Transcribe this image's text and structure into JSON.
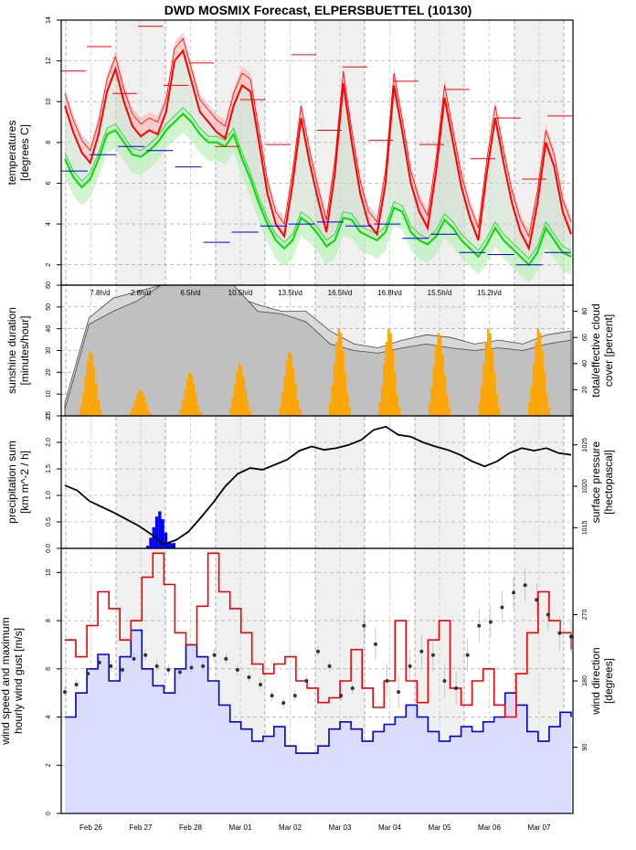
{
  "title": "DWD MOSMIX Forecast, ELPERSBUETTEL (10130)",
  "x_days": [
    "Feb 26",
    "Feb 27",
    "Feb 28",
    "Mar 01",
    "Mar 02",
    "Mar 03",
    "Mar 04",
    "Mar 05",
    "Mar 06",
    "Mar 07"
  ],
  "colors": {
    "tmax": "#ff0000",
    "tmin": "#00dd00",
    "tmaxband": "#ffb0b0",
    "tminband": "#b0f0b0",
    "bar_min": "#0000cc",
    "sun": "#ffa500",
    "cloud": "#c8c8c8",
    "precip": "#0000ff",
    "gust": "#ee0000",
    "wind": "#0000cc",
    "windfill": "#dcdcff",
    "night": "#f0f0f0"
  },
  "chart_data": [
    {
      "type": "line",
      "panel": "temperature",
      "ylabel": "temperatures\n[degrees C]",
      "ylim": [
        1,
        14
      ],
      "yticks": [
        2,
        4,
        6,
        8,
        10,
        12,
        14
      ],
      "series": [
        {
          "name": "temperature (2m)",
          "values": [
            9.8,
            8.5,
            7.5,
            7.0,
            8.4,
            10.5,
            11.6,
            10.0,
            8.8,
            8.3,
            8.6,
            8.4,
            9.5,
            12.0,
            12.5,
            11.0,
            9.5,
            9.0,
            8.5,
            8.2,
            9.8,
            10.8,
            10.5,
            8.0,
            5.5,
            4.0,
            3.4,
            6.0,
            9.2,
            7.0,
            5.2,
            3.6,
            6.5,
            10.9,
            8.0,
            5.5,
            4.0,
            3.5,
            6.0,
            10.8,
            8.5,
            6.0,
            4.6,
            3.8,
            6.6,
            10.2,
            8.0,
            5.8,
            4.3,
            3.2,
            6.5,
            9.2,
            7.0,
            5.0,
            3.6,
            2.8,
            5.0,
            8.0,
            6.8,
            4.6,
            3.5
          ]
        },
        {
          "name": "dewpoint/min",
          "values": [
            7.2,
            6.3,
            5.8,
            6.2,
            7.2,
            8.4,
            8.6,
            8.0,
            7.4,
            7.3,
            7.6,
            8.0,
            8.6,
            9.0,
            9.4,
            9.0,
            8.4,
            8.0,
            8.0,
            7.8,
            8.4,
            7.2,
            6.2,
            5.0,
            4.0,
            3.2,
            2.8,
            3.2,
            4.3,
            4.0,
            3.5,
            2.9,
            3.2,
            4.3,
            4.2,
            3.6,
            3.4,
            3.2,
            3.6,
            4.8,
            4.6,
            3.6,
            3.2,
            3.0,
            3.4,
            4.2,
            3.8,
            3.2,
            2.8,
            2.4,
            3.0,
            3.8,
            3.2,
            2.8,
            2.4,
            2.0,
            2.6,
            3.8,
            3.2,
            2.6,
            2.4
          ]
        }
      ],
      "daily_max_marks": [
        11.5,
        12.7,
        10.4,
        13.7,
        10.8,
        11.9,
        7.8,
        10.1,
        7.9,
        12.3,
        8.6,
        11.7,
        8.1,
        11.0,
        7.9,
        10.6,
        7.2,
        9.2,
        6.2,
        9.3
      ],
      "daily_min_marks": [
        6.6,
        7.4,
        7.8,
        7.6,
        6.8,
        3.1,
        3.6,
        3.9,
        4.0,
        4.1,
        3.9,
        4.0,
        3.3,
        3.5,
        2.6,
        2.5,
        2.0,
        2.6
      ]
    },
    {
      "type": "bar",
      "panel": "sunshine",
      "ylabel": "sunshine duration\n[minutes/hour]",
      "ylabel_right": "total/effective cloud\ncover [percent]",
      "ylim": [
        0,
        60
      ],
      "yticks": [
        0,
        10,
        20,
        30,
        40,
        50,
        60
      ],
      "yticks_right": [
        20,
        40,
        60,
        80
      ],
      "daily_sunshine_labels": [
        "7.8h/d",
        "2.8h/d",
        "6.5h/d",
        "10.5h/d",
        "13.5h/d",
        "16.5h/d",
        "16.8h/d",
        "15.5h/d",
        "15.2h/d"
      ],
      "daily_sun_peak_min": [
        30,
        12,
        20,
        24,
        30,
        40,
        40,
        38,
        40,
        40
      ],
      "cloud_total_pct": [
        10,
        75,
        90,
        95,
        100,
        100,
        98,
        92,
        85,
        80,
        80,
        65,
        55,
        52,
        58,
        62,
        60,
        55,
        58,
        55,
        62,
        65
      ],
      "cloud_effective_pct": [
        5,
        70,
        80,
        88,
        100,
        100,
        100,
        100,
        80,
        78,
        72,
        55,
        50,
        48,
        52,
        55,
        52,
        50,
        52,
        50,
        55,
        58
      ]
    },
    {
      "type": "line",
      "panel": "precipitation/pressure",
      "ylabel": "precipitation sum\n[km m^-2 / h]",
      "ylabel_right": "surface pressure\n[hectopascal]",
      "ylim": [
        0,
        2.5
      ],
      "yticks": [
        0.0,
        0.5,
        1.0,
        1.5,
        2.0,
        2.5
      ],
      "yticks_right": [
        1015,
        1020,
        1025
      ],
      "pressure_hpa": [
        1020.1,
        1019.5,
        1018.2,
        1017.5,
        1016.8,
        1016.0,
        1015.2,
        1014.2,
        1013.0,
        1013.5,
        1014.5,
        1016.2,
        1018.0,
        1020.0,
        1021.5,
        1022.2,
        1022.0,
        1022.6,
        1023.2,
        1024.3,
        1024.8,
        1024.4,
        1024.6,
        1025.0,
        1025.6,
        1026.8,
        1027.2,
        1026.2,
        1026.0,
        1025.3,
        1024.8,
        1024.4,
        1023.8,
        1023.0,
        1022.4,
        1023.0,
        1024.0,
        1024.6,
        1024.3,
        1024.6,
        1024.0,
        1023.8
      ],
      "precip_bars": [
        0.05,
        0.2,
        0.4,
        0.6,
        0.7,
        0.55,
        0.3,
        0.1,
        0.05
      ]
    },
    {
      "type": "line",
      "panel": "wind",
      "ylabel": "wind speed and maximum\nhourly wind gust [m/s]",
      "ylabel_right": "wind direction\n[degrees]",
      "ylim": [
        0,
        11
      ],
      "yticks": [
        0,
        2,
        4,
        6,
        8,
        10
      ],
      "yticks_right": [
        90,
        180,
        270
      ],
      "gust_ms": [
        7.2,
        6.5,
        7.8,
        9.2,
        8.5,
        7.2,
        8.0,
        9.8,
        10.8,
        9.5,
        7.5,
        7.0,
        8.6,
        10.8,
        9.2,
        8.5,
        7.5,
        6.2,
        5.8,
        6.2,
        6.5,
        5.5,
        5.2,
        4.6,
        4.8,
        5.5,
        6.8,
        5.2,
        4.4,
        5.5,
        8.0,
        5.5,
        4.6,
        7.2,
        8.0,
        5.2,
        4.5,
        5.5,
        6.0,
        4.5,
        4.0,
        5.8,
        7.5,
        9.2,
        8.0,
        7.5,
        6.8
      ],
      "wind_ms": [
        4.0,
        5.0,
        6.0,
        6.6,
        5.5,
        6.5,
        7.6,
        6.0,
        5.3,
        5.0,
        6.0,
        7.0,
        6.5,
        5.5,
        4.5,
        3.8,
        3.5,
        3.0,
        3.2,
        3.6,
        2.8,
        2.5,
        2.5,
        2.8,
        3.5,
        3.8,
        3.5,
        3.0,
        3.4,
        3.7,
        4.0,
        4.5,
        4.0,
        3.4,
        3.0,
        3.2,
        3.6,
        3.4,
        3.8,
        4.0,
        5.0,
        4.5,
        3.4,
        3.0,
        3.6,
        4.2,
        4.0
      ],
      "direction_deg": [
        165,
        175,
        190,
        205,
        200,
        195,
        210,
        215,
        200,
        195,
        192,
        198,
        200,
        215,
        210,
        195,
        185,
        175,
        160,
        150,
        160,
        180,
        220,
        200,
        160,
        170,
        255,
        230,
        180,
        165,
        200,
        220,
        215,
        180,
        170,
        215,
        255,
        260,
        280,
        300,
        310,
        290,
        270,
        245,
        240
      ]
    }
  ]
}
